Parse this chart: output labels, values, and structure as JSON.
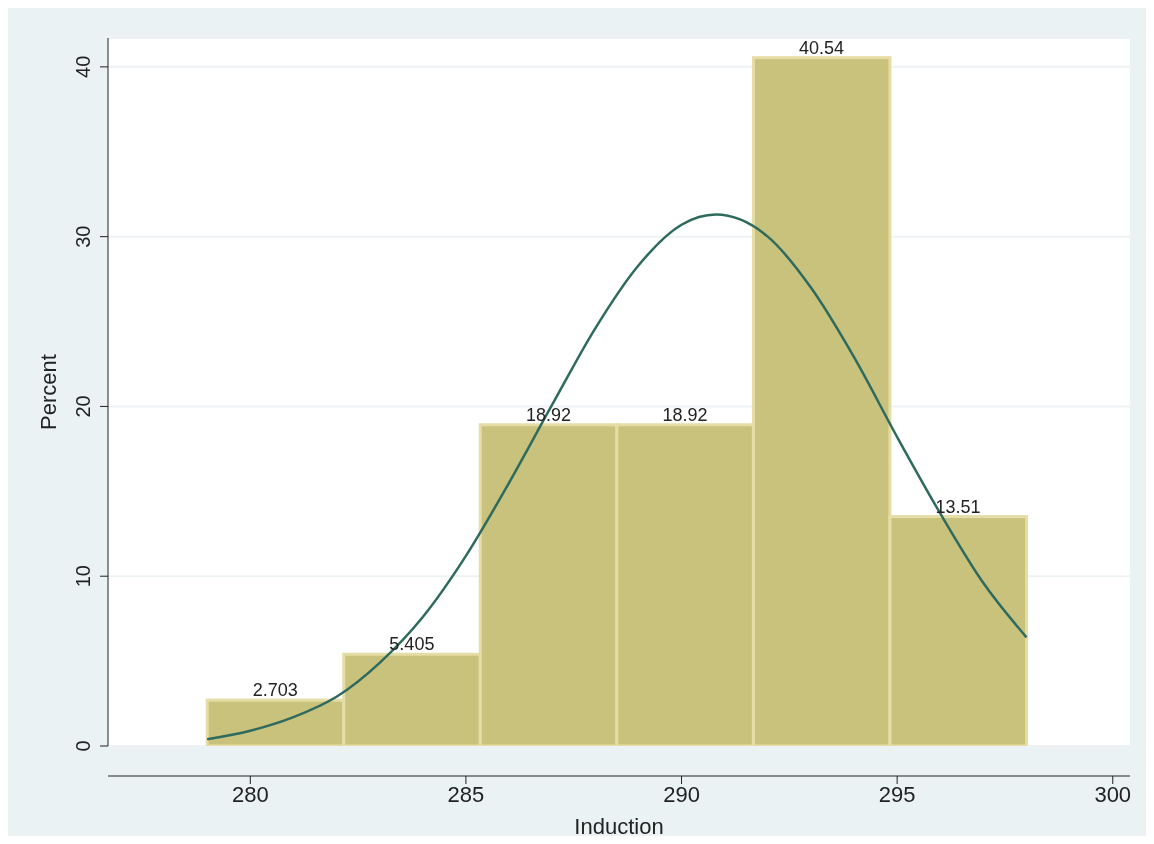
{
  "chart_data": {
    "type": "histogram",
    "xlabel": "Induction",
    "ylabel": "Percent",
    "bins": [
      279,
      282.167,
      285.333,
      288.5,
      291.667,
      294.833,
      298
    ],
    "values": [
      2.703,
      5.405,
      18.92,
      18.92,
      40.54,
      13.51
    ],
    "color": "#c9c27c",
    "value_labels": [
      "2.703",
      "5.405",
      "18.92",
      "18.92",
      "40.54",
      "13.51"
    ],
    "xlim": [
      276.7,
      300.4
    ],
    "xticks": [
      280,
      285,
      290,
      295,
      300
    ],
    "ylim": [
      0,
      41.7
    ],
    "yticks": [
      0,
      10,
      20,
      30,
      40
    ],
    "grid": "y",
    "series": [
      {
        "type": "line",
        "color": "#2e6b5e",
        "x": [
          279,
          280,
          281,
          282,
          283,
          284,
          285,
          286,
          287,
          288,
          289,
          290,
          290.8,
          292,
          293,
          294,
          295,
          296,
          297,
          298
        ],
        "values": [
          0.4,
          0.9,
          1.7,
          2.9,
          4.9,
          7.6,
          11.2,
          15.5,
          20.1,
          24.6,
          28.3,
          30.7,
          31.3,
          30,
          27,
          22.9,
          18.2,
          13.7,
          9.6,
          6.4
        ]
      }
    ]
  }
}
